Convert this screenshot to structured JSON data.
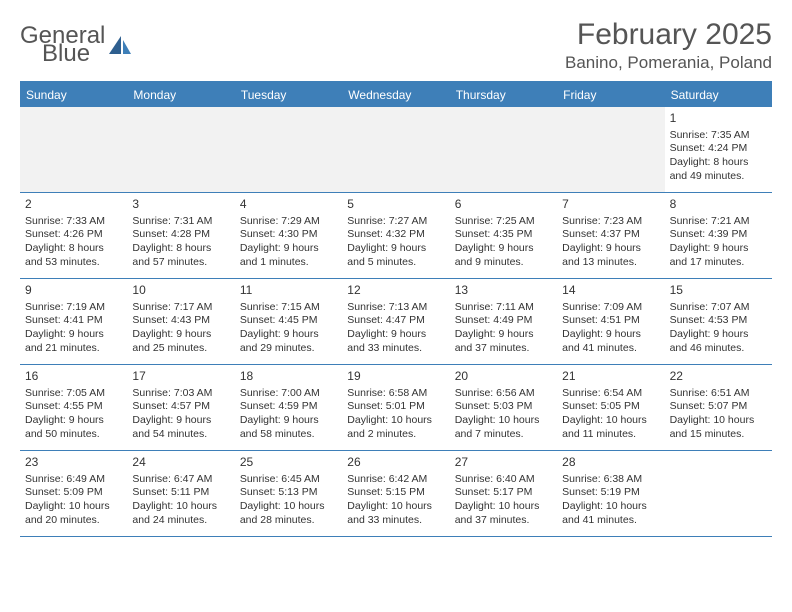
{
  "logo": {
    "word1": "General",
    "word2": "Blue"
  },
  "title": "February 2025",
  "location": "Banino, Pomerania, Poland",
  "colors": {
    "primary": "#3e7fb8",
    "text": "#333333",
    "header_text": "#555555",
    "blank_bg": "#f2f2f2",
    "white": "#ffffff"
  },
  "typography": {
    "title_fontsize": 30,
    "location_fontsize": 17,
    "dayheader_fontsize": 12,
    "daynum_fontsize": 12,
    "cell_fontsize": 10.5
  },
  "day_names": [
    "Sunday",
    "Monday",
    "Tuesday",
    "Wednesday",
    "Thursday",
    "Friday",
    "Saturday"
  ],
  "weeks": [
    [
      null,
      null,
      null,
      null,
      null,
      null,
      {
        "n": "1",
        "sunrise": "7:35 AM",
        "sunset": "4:24 PM",
        "day_h": "8",
        "day_m": "49"
      }
    ],
    [
      {
        "n": "2",
        "sunrise": "7:33 AM",
        "sunset": "4:26 PM",
        "day_h": "8",
        "day_m": "53"
      },
      {
        "n": "3",
        "sunrise": "7:31 AM",
        "sunset": "4:28 PM",
        "day_h": "8",
        "day_m": "57"
      },
      {
        "n": "4",
        "sunrise": "7:29 AM",
        "sunset": "4:30 PM",
        "day_h": "9",
        "day_m": "1"
      },
      {
        "n": "5",
        "sunrise": "7:27 AM",
        "sunset": "4:32 PM",
        "day_h": "9",
        "day_m": "5"
      },
      {
        "n": "6",
        "sunrise": "7:25 AM",
        "sunset": "4:35 PM",
        "day_h": "9",
        "day_m": "9"
      },
      {
        "n": "7",
        "sunrise": "7:23 AM",
        "sunset": "4:37 PM",
        "day_h": "9",
        "day_m": "13"
      },
      {
        "n": "8",
        "sunrise": "7:21 AM",
        "sunset": "4:39 PM",
        "day_h": "9",
        "day_m": "17"
      }
    ],
    [
      {
        "n": "9",
        "sunrise": "7:19 AM",
        "sunset": "4:41 PM",
        "day_h": "9",
        "day_m": "21"
      },
      {
        "n": "10",
        "sunrise": "7:17 AM",
        "sunset": "4:43 PM",
        "day_h": "9",
        "day_m": "25"
      },
      {
        "n": "11",
        "sunrise": "7:15 AM",
        "sunset": "4:45 PM",
        "day_h": "9",
        "day_m": "29"
      },
      {
        "n": "12",
        "sunrise": "7:13 AM",
        "sunset": "4:47 PM",
        "day_h": "9",
        "day_m": "33"
      },
      {
        "n": "13",
        "sunrise": "7:11 AM",
        "sunset": "4:49 PM",
        "day_h": "9",
        "day_m": "37"
      },
      {
        "n": "14",
        "sunrise": "7:09 AM",
        "sunset": "4:51 PM",
        "day_h": "9",
        "day_m": "41"
      },
      {
        "n": "15",
        "sunrise": "7:07 AM",
        "sunset": "4:53 PM",
        "day_h": "9",
        "day_m": "46"
      }
    ],
    [
      {
        "n": "16",
        "sunrise": "7:05 AM",
        "sunset": "4:55 PM",
        "day_h": "9",
        "day_m": "50"
      },
      {
        "n": "17",
        "sunrise": "7:03 AM",
        "sunset": "4:57 PM",
        "day_h": "9",
        "day_m": "54"
      },
      {
        "n": "18",
        "sunrise": "7:00 AM",
        "sunset": "4:59 PM",
        "day_h": "9",
        "day_m": "58"
      },
      {
        "n": "19",
        "sunrise": "6:58 AM",
        "sunset": "5:01 PM",
        "day_h": "10",
        "day_m": "2"
      },
      {
        "n": "20",
        "sunrise": "6:56 AM",
        "sunset": "5:03 PM",
        "day_h": "10",
        "day_m": "7"
      },
      {
        "n": "21",
        "sunrise": "6:54 AM",
        "sunset": "5:05 PM",
        "day_h": "10",
        "day_m": "11"
      },
      {
        "n": "22",
        "sunrise": "6:51 AM",
        "sunset": "5:07 PM",
        "day_h": "10",
        "day_m": "15"
      }
    ],
    [
      {
        "n": "23",
        "sunrise": "6:49 AM",
        "sunset": "5:09 PM",
        "day_h": "10",
        "day_m": "20"
      },
      {
        "n": "24",
        "sunrise": "6:47 AM",
        "sunset": "5:11 PM",
        "day_h": "10",
        "day_m": "24"
      },
      {
        "n": "25",
        "sunrise": "6:45 AM",
        "sunset": "5:13 PM",
        "day_h": "10",
        "day_m": "28"
      },
      {
        "n": "26",
        "sunrise": "6:42 AM",
        "sunset": "5:15 PM",
        "day_h": "10",
        "day_m": "33"
      },
      {
        "n": "27",
        "sunrise": "6:40 AM",
        "sunset": "5:17 PM",
        "day_h": "10",
        "day_m": "37"
      },
      {
        "n": "28",
        "sunrise": "6:38 AM",
        "sunset": "5:19 PM",
        "day_h": "10",
        "day_m": "41"
      },
      null
    ]
  ],
  "labels": {
    "sunrise": "Sunrise:",
    "sunset": "Sunset:",
    "daylight": "Daylight:",
    "hours": "hours",
    "and": "and",
    "minutes": "minutes."
  }
}
